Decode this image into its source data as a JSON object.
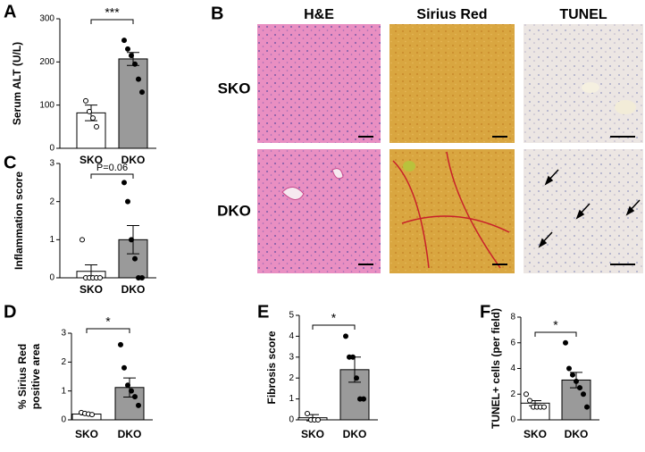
{
  "chart_data": [
    {
      "type": "bar",
      "panel": "A",
      "ylabel": [
        "Serum ALT (U/L)"
      ],
      "categories": [
        "SKO",
        "DKO"
      ],
      "values": [
        82,
        207
      ],
      "errors": [
        18,
        15
      ],
      "colors": [
        "#ffffff",
        "#9a9a9a"
      ],
      "points": [
        [
          110,
          85,
          70,
          50
        ],
        [
          250,
          230,
          215,
          195,
          160,
          130
        ]
      ],
      "ylim": [
        0,
        300
      ],
      "yticks": [
        0,
        100,
        200,
        300
      ],
      "annotation": "***"
    },
    {
      "type": "bar",
      "panel": "C",
      "ylabel": [
        "Inflammation score"
      ],
      "categories": [
        "SKO",
        "DKO"
      ],
      "values": [
        0.17,
        1.0
      ],
      "errors": [
        0.17,
        0.37
      ],
      "colors": [
        "#ffffff",
        "#9a9a9a"
      ],
      "points": [
        [
          1,
          0,
          0,
          0,
          0,
          0
        ],
        [
          2.5,
          2,
          1,
          0.5,
          0,
          0
        ]
      ],
      "ylim": [
        0,
        3
      ],
      "yticks": [
        0,
        1,
        2,
        3
      ],
      "annotation": "P=0.06"
    },
    {
      "type": "bar",
      "panel": "D",
      "ylabel": [
        "% Sirius Red",
        "positive area"
      ],
      "categories": [
        "SKO",
        "DKO"
      ],
      "values": [
        0.2,
        1.12
      ],
      "errors": [
        0.03,
        0.33
      ],
      "colors": [
        "#ffffff",
        "#9a9a9a"
      ],
      "points": [
        [
          0.25,
          0.22,
          0.2,
          0.18
        ],
        [
          2.6,
          1.8,
          1.2,
          1.0,
          0.8,
          0.5
        ]
      ],
      "ylim": [
        0,
        3
      ],
      "yticks": [
        0,
        1,
        2,
        3
      ],
      "annotation": "*"
    },
    {
      "type": "bar",
      "panel": "E",
      "ylabel": [
        "Fibrosis score"
      ],
      "categories": [
        "SKO",
        "DKO"
      ],
      "values": [
        0.1,
        2.4
      ],
      "errors": [
        0.15,
        0.6
      ],
      "colors": [
        "#ffffff",
        "#9a9a9a"
      ],
      "points": [
        [
          0.3,
          0,
          0,
          0
        ],
        [
          4,
          3,
          3,
          2,
          1,
          1
        ]
      ],
      "ylim": [
        0,
        5
      ],
      "yticks": [
        0,
        1,
        2,
        3,
        4,
        5
      ],
      "annotation": "*"
    },
    {
      "type": "bar",
      "panel": "F",
      "ylabel": [
        "TUNEL+ cells (per field)"
      ],
      "categories": [
        "SKO",
        "DKO"
      ],
      "values": [
        1.3,
        3.1
      ],
      "errors": [
        0.2,
        0.6
      ],
      "colors": [
        "#ffffff",
        "#9a9a9a"
      ],
      "points": [
        [
          2,
          1.5,
          1,
          1,
          1,
          1
        ],
        [
          6,
          4,
          3.5,
          3,
          2.5,
          2,
          1
        ]
      ],
      "ylim": [
        0,
        8
      ],
      "yticks": [
        0,
        2,
        4,
        6,
        8
      ],
      "annotation": "*"
    }
  ],
  "histology": {
    "panel": "B",
    "columns": [
      "H&E",
      "Sirius Red",
      "TUNEL"
    ],
    "rows": [
      "SKO",
      "DKO"
    ]
  }
}
